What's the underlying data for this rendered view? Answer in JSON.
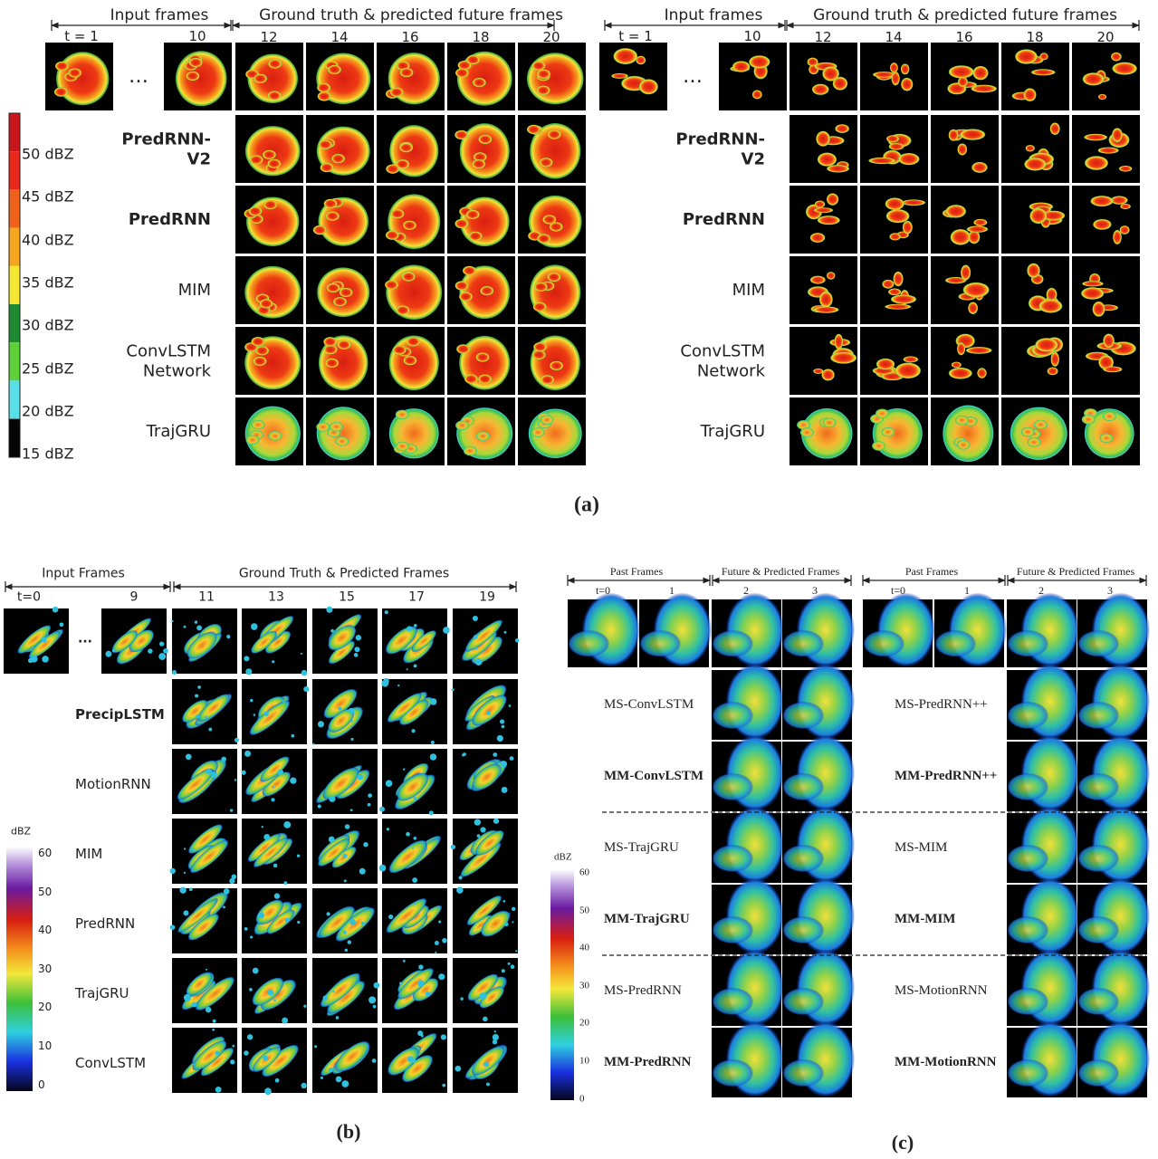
{
  "panel_a": {
    "label": "(a)",
    "colorbar": [
      "50 dBZ",
      "45 dBZ",
      "40 dBZ",
      "35 dBZ",
      "30 dBZ",
      "25 dBZ",
      "20 dBZ",
      "15 dBZ"
    ],
    "groups": [
      {
        "input_header": "Input frames",
        "output_header": "Ground truth & predicted future frames",
        "input_steps": [
          "t = 1",
          "10"
        ],
        "output_steps": [
          "12",
          "14",
          "16",
          "18",
          "20"
        ],
        "ellipsis": "…",
        "rows": [
          {
            "name": "PredRNN-V2",
            "bold": true
          },
          {
            "name": "PredRNN",
            "bold": true
          },
          {
            "name": "MIM",
            "bold": false
          },
          {
            "name": "ConvLSTM Network",
            "bold": false
          },
          {
            "name": "TrajGRU",
            "bold": false
          }
        ]
      },
      {
        "input_header": "Input frames",
        "output_header": "Ground truth & predicted future frames",
        "input_steps": [
          "t = 1",
          "10"
        ],
        "output_steps": [
          "12",
          "14",
          "16",
          "18",
          "20"
        ],
        "ellipsis": "…",
        "rows": [
          {
            "name": "PredRNN-V2",
            "bold": true
          },
          {
            "name": "PredRNN",
            "bold": true
          },
          {
            "name": "MIM",
            "bold": false
          },
          {
            "name": "ConvLSTM Network",
            "bold": false
          },
          {
            "name": "TrajGRU",
            "bold": false
          }
        ]
      }
    ]
  },
  "panel_b": {
    "label": "(b)",
    "input_header": "Input Frames",
    "output_header": "Ground Truth & Predicted Frames",
    "input_steps": [
      "t=0",
      "9"
    ],
    "output_steps": [
      "11",
      "13",
      "15",
      "17",
      "19"
    ],
    "ellipsis": "...",
    "rows": [
      {
        "name": "PrecipLSTM",
        "bold": true
      },
      {
        "name": "MotionRNN",
        "bold": false
      },
      {
        "name": "MIM",
        "bold": false
      },
      {
        "name": "PredRNN",
        "bold": false
      },
      {
        "name": "TrajGRU",
        "bold": false
      },
      {
        "name": "ConvLSTM",
        "bold": false
      }
    ],
    "colorbar_title": "dBZ",
    "colorbar": [
      "60",
      "50",
      "40",
      "30",
      "20",
      "10",
      "0"
    ]
  },
  "panel_c": {
    "label": "(c)",
    "colorbar_title": "dBZ",
    "colorbar": [
      "60",
      "50",
      "40",
      "30",
      "20",
      "10",
      "0"
    ],
    "groups": [
      {
        "past_header": "Past Frames",
        "future_header": "Future & Predicted Frames",
        "past_steps": [
          "t=0",
          "1"
        ],
        "future_steps": [
          "2",
          "3"
        ],
        "rows": [
          {
            "name": "MS-ConvLSTM",
            "bold": false
          },
          {
            "name": "MM-ConvLSTM",
            "bold": true
          },
          {
            "name": "MS-TrajGRU",
            "bold": false
          },
          {
            "name": "MM-TrajGRU",
            "bold": true
          },
          {
            "name": "MS-PredRNN",
            "bold": false
          },
          {
            "name": "MM-PredRNN",
            "bold": true
          }
        ]
      },
      {
        "past_header": "Past Frames",
        "future_header": "Future & Predicted Frames",
        "past_steps": [
          "t=0",
          "1"
        ],
        "future_steps": [
          "2",
          "3"
        ],
        "rows": [
          {
            "name": "MS-PredRNN++",
            "bold": false
          },
          {
            "name": "MM-PredRNN++",
            "bold": true
          },
          {
            "name": "MS-MIM",
            "bold": false
          },
          {
            "name": "MM-MIM",
            "bold": true
          },
          {
            "name": "MS-MotionRNN",
            "bold": false
          },
          {
            "name": "MM-MotionRNN",
            "bold": true
          }
        ]
      }
    ]
  }
}
